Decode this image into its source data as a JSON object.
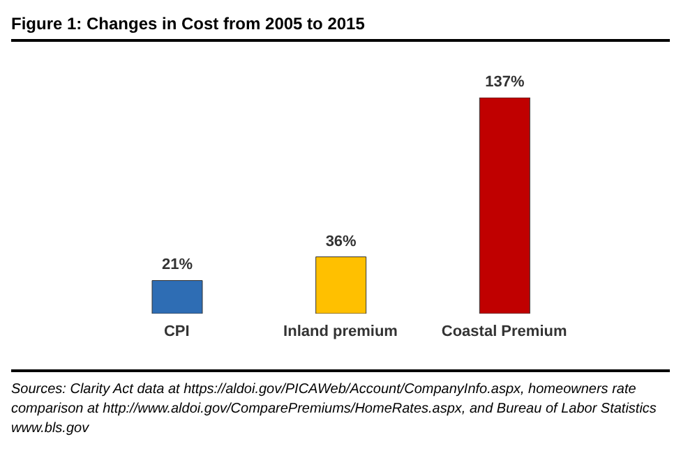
{
  "chart_data": {
    "type": "bar",
    "title": "Figure 1: Changes in Cost from 2005 to 2015",
    "categories": [
      "CPI",
      "Inland premium",
      "Coastal Premium"
    ],
    "values": [
      21,
      36,
      137
    ],
    "colors": [
      "#2e6db4",
      "#ffc000",
      "#c00000"
    ],
    "value_labels": [
      "21%",
      "36%",
      "137%"
    ],
    "annotations": [
      "Sources: Clarity Act data at https://aldoi.gov/PICAWeb/Account/CompanyInfo.aspx, homeowners rate comparison at http://www.aldoi.gov/ComparePremiums/HomeRates.aspx, and Bureau of Labor Statistics www.bls.gov"
    ],
    "grid": false,
    "legend": false
  }
}
